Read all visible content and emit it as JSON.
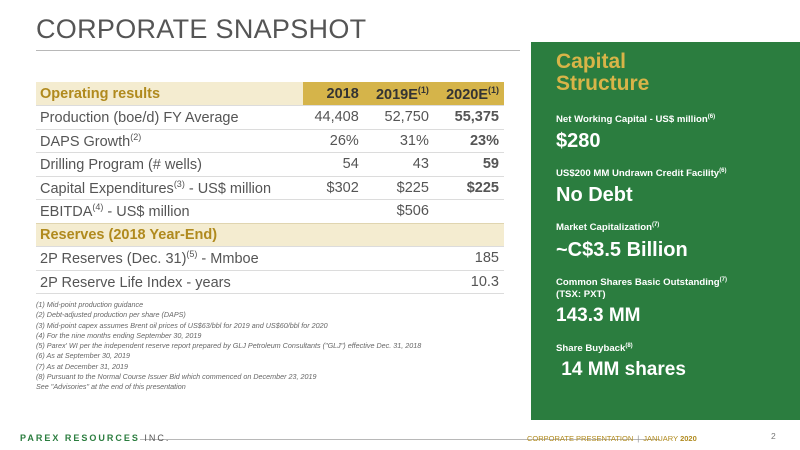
{
  "title": "CORPORATE SNAPSHOT",
  "table": {
    "header": {
      "label": "Operating results",
      "col1": "2018",
      "col2": "2019E",
      "col2_sup": "(1)",
      "col3": "2020E",
      "col3_sup": "(1)"
    },
    "rows": [
      {
        "label": "Production (boe/d)  FY Average",
        "sup": "",
        "label_tail": "",
        "v1": "44,408",
        "v2": "52,750",
        "v3": "55,375"
      },
      {
        "label": "DAPS Growth",
        "sup": "(2)",
        "label_tail": "",
        "v1": "26%",
        "v2": "31%",
        "v3": "23%"
      },
      {
        "label": "Drilling Program (# wells)",
        "sup": "",
        "label_tail": "",
        "v1": "54",
        "v2": "43",
        "v3": "59"
      },
      {
        "label": "Capital Expenditures",
        "sup": "(3)",
        "label_tail": "  - US$ million",
        "v1": "$302",
        "v2": "$225",
        "v3": "$225"
      },
      {
        "label": "EBITDA",
        "sup": "(4)",
        "label_tail": " - US$ million",
        "v1": "",
        "v2": "$506",
        "v3": ""
      }
    ],
    "reserves_header": "Reserves (2018 Year-End)",
    "reserves": [
      {
        "label": "2P Reserves (Dec. 31)",
        "sup": "(5)",
        "label_tail": " - Mmboe",
        "value": "185"
      },
      {
        "label": "2P Reserve Life Index - years",
        "sup": "",
        "label_tail": "",
        "value": "10.3"
      }
    ]
  },
  "notes": [
    "(1) Mid-point production guidance",
    "(2) Debt-adjusted production per share (DAPS)",
    "(3) Mid-point capex assumes Brent oil prices of US$63/bbl for 2019 and US$60/bbl for 2020",
    "(4) For the nine months ending September 30, 2019",
    "(5) Parex' WI  per the independent reserve report prepared by GLJ Petroleum Consultants (\"GLJ\") effective  Dec. 31, 2018",
    "(6) As at September 30, 2019",
    "(7) As at December 31, 2019",
    "(8) Pursuant to the Normal Course Issuer Bid  which commenced on December 23, 2019",
    "See \"Advisories\" at the end of this presentation"
  ],
  "panel": {
    "title_line1": "Capital",
    "title_line2": "Structure",
    "items": [
      {
        "label": "Net Working Capital  - US$ million",
        "sup": "(6)",
        "label2": "",
        "value": "$280"
      },
      {
        "label": "US$200 MM Undrawn Credit Facility",
        "sup": "(6)",
        "label2": "",
        "value": "No Debt"
      },
      {
        "label": "Market Capitalization",
        "sup": "(7)",
        "label2": "",
        "value": "~C$3.5 Billion"
      },
      {
        "label": "Common Shares Basic Outstanding",
        "sup": "(7)",
        "label2": "(TSX: PXT)",
        "value": "143.3 MM"
      },
      {
        "label": "Share Buyback",
        "sup": "(8)",
        "label2": "",
        "value": " 14 MM shares"
      }
    ]
  },
  "footer": {
    "brand_main": "PAREX RESOURCES",
    "brand_rest": " INC.",
    "center": "CORPORATE PRESENTATION",
    "sep": "|",
    "month": "JANUARY",
    "year": "2020",
    "page": "2"
  },
  "colors": {
    "green": "#2b7d3f",
    "gold": "#b08a1e",
    "gold_fill": "#d5b44a"
  }
}
